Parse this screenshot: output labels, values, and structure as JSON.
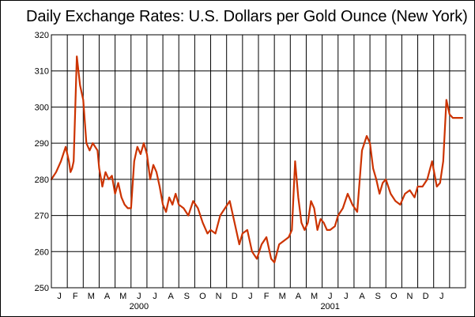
{
  "chart_data": {
    "type": "line",
    "title": "Daily Exchange Rates: U.S. Dollars per Gold Ounce (New York)",
    "xlabel": "",
    "ylabel": "",
    "ylim": [
      250,
      320
    ],
    "y_ticks": [
      250,
      260,
      270,
      280,
      290,
      300,
      310,
      320
    ],
    "y_tick_labels": [
      "250",
      "260",
      "270",
      "280",
      "290",
      "300",
      "310",
      "320"
    ],
    "month_labels": [
      "J",
      "F",
      "M",
      "A",
      "M",
      "J",
      "J",
      "A",
      "S",
      "O",
      "N",
      "D",
      "J",
      "F",
      "M",
      "A",
      "M",
      "J",
      "J",
      "A",
      "S",
      "O",
      "N",
      "D",
      "J"
    ],
    "year_labels": [
      {
        "text": "2000",
        "month_index": 5.5
      },
      {
        "text": "2001",
        "month_index": 17.5
      }
    ],
    "grid": true,
    "series": [
      {
        "color": "#cc3300",
        "x": [
          0.0,
          0.3,
          0.6,
          0.9,
          1.1,
          1.2,
          1.3,
          1.4,
          1.6,
          1.8,
          2.0,
          2.2,
          2.4,
          2.6,
          2.9,
          3.0,
          3.2,
          3.4,
          3.6,
          3.8,
          4.0,
          4.2,
          4.4,
          4.6,
          4.8,
          5.0,
          5.2,
          5.4,
          5.6,
          5.8,
          6.0,
          6.2,
          6.4,
          6.6,
          6.8,
          7.0,
          7.2,
          7.4,
          7.6,
          7.8,
          8.0,
          8.3,
          8.6,
          8.9,
          9.2,
          9.5,
          9.8,
          10.0,
          10.3,
          10.6,
          10.9,
          11.2,
          11.5,
          11.8,
          12.0,
          12.3,
          12.6,
          12.9,
          13.2,
          13.5,
          13.8,
          14.0,
          14.3,
          14.6,
          14.9,
          15.1,
          15.3,
          15.5,
          15.7,
          15.9,
          16.1,
          16.3,
          16.5,
          16.7,
          16.9,
          17.1,
          17.3,
          17.5,
          17.8,
          18.0,
          18.3,
          18.6,
          18.9,
          19.2,
          19.5,
          19.8,
          20.0,
          20.2,
          20.4,
          20.6,
          20.8,
          21.0,
          21.3,
          21.6,
          21.9,
          22.2,
          22.5,
          22.8,
          23.0,
          23.3,
          23.6,
          23.9,
          24.2,
          24.4,
          24.6,
          24.8,
          25.0,
          25.2,
          25.5,
          25.8
        ],
        "values": [
          280,
          282,
          285,
          289,
          285,
          282,
          283,
          285,
          314,
          306,
          302,
          290,
          288,
          290,
          288,
          283,
          278,
          282,
          280,
          281,
          276,
          279,
          275,
          273,
          272,
          272,
          285,
          289,
          287,
          290,
          287,
          280,
          284,
          282,
          278,
          273,
          271,
          275,
          273,
          276,
          273,
          272,
          270,
          274,
          272,
          268,
          265,
          266,
          265,
          270,
          272,
          274,
          268,
          262,
          265,
          266,
          260,
          258,
          262,
          264,
          258,
          257,
          262,
          263,
          264,
          266,
          285,
          275,
          268,
          266,
          268,
          274,
          272,
          266,
          269,
          268,
          266,
          266,
          267,
          270,
          272,
          276,
          273,
          271,
          288,
          292,
          290,
          283,
          280,
          276,
          279,
          280,
          276,
          274,
          273,
          276,
          277,
          275,
          278,
          278,
          280,
          285,
          278,
          279,
          285,
          302,
          298,
          297,
          297,
          297
        ]
      }
    ]
  }
}
